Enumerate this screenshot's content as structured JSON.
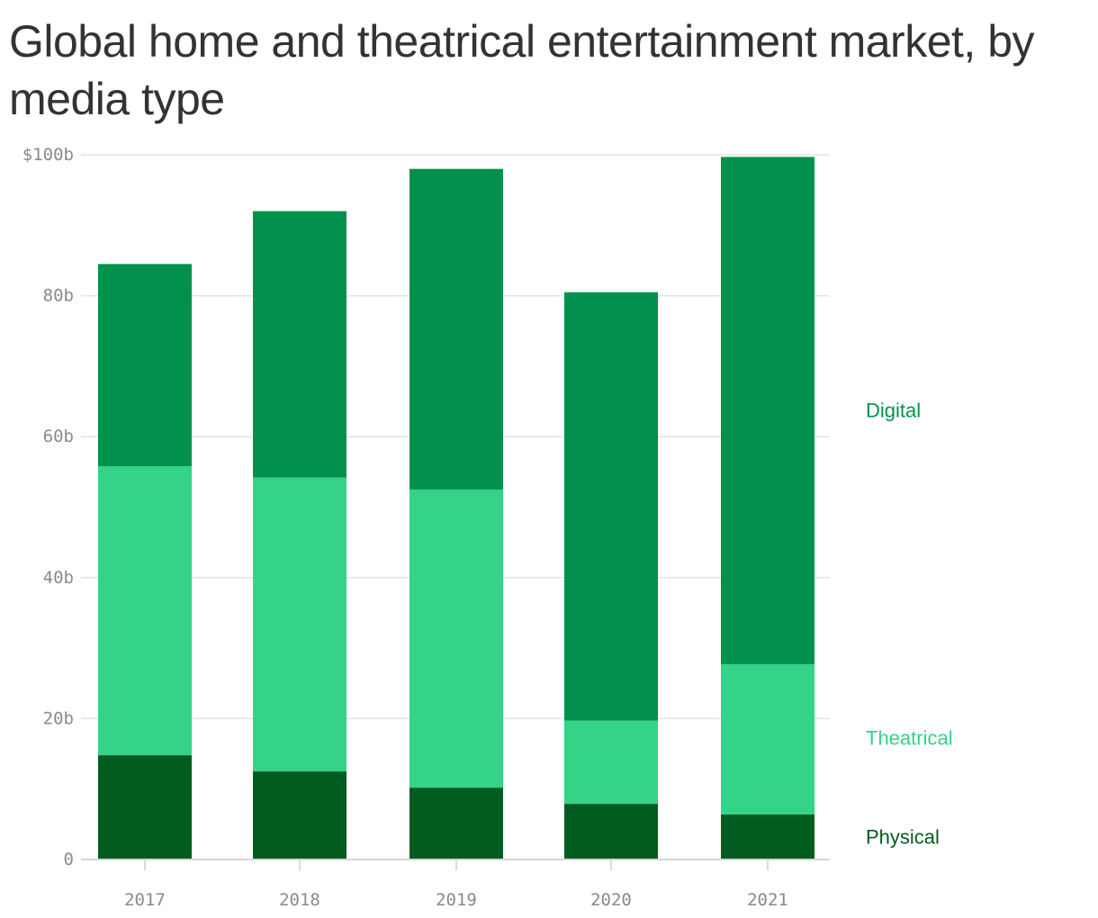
{
  "chart_data": {
    "type": "bar",
    "stacked": true,
    "title": "Global home and theatrical entertainment market, by media type",
    "xlabel": "",
    "ylabel": "",
    "categories": [
      "2017",
      "2018",
      "2019",
      "2020",
      "2021"
    ],
    "series": [
      {
        "name": "Physical",
        "color": "#005c1e",
        "values": [
          14.8,
          12.5,
          10.2,
          7.9,
          6.4
        ]
      },
      {
        "name": "Theatrical",
        "color": "#34d388",
        "values": [
          41.0,
          41.7,
          42.3,
          11.8,
          21.3
        ]
      },
      {
        "name": "Digital",
        "color": "#02914d",
        "values": [
          28.7,
          37.8,
          45.5,
          60.8,
          72.0
        ]
      }
    ],
    "ylim": [
      0,
      100
    ],
    "y_ticks": [
      {
        "value": 0,
        "label": "0"
      },
      {
        "value": 20,
        "label": "20b"
      },
      {
        "value": 40,
        "label": "40b"
      },
      {
        "value": 60,
        "label": "60b"
      },
      {
        "value": 80,
        "label": "80b"
      },
      {
        "value": 100,
        "label": "$100b"
      }
    ],
    "grid": true,
    "legend": "right, inline labels beside the last bar"
  }
}
